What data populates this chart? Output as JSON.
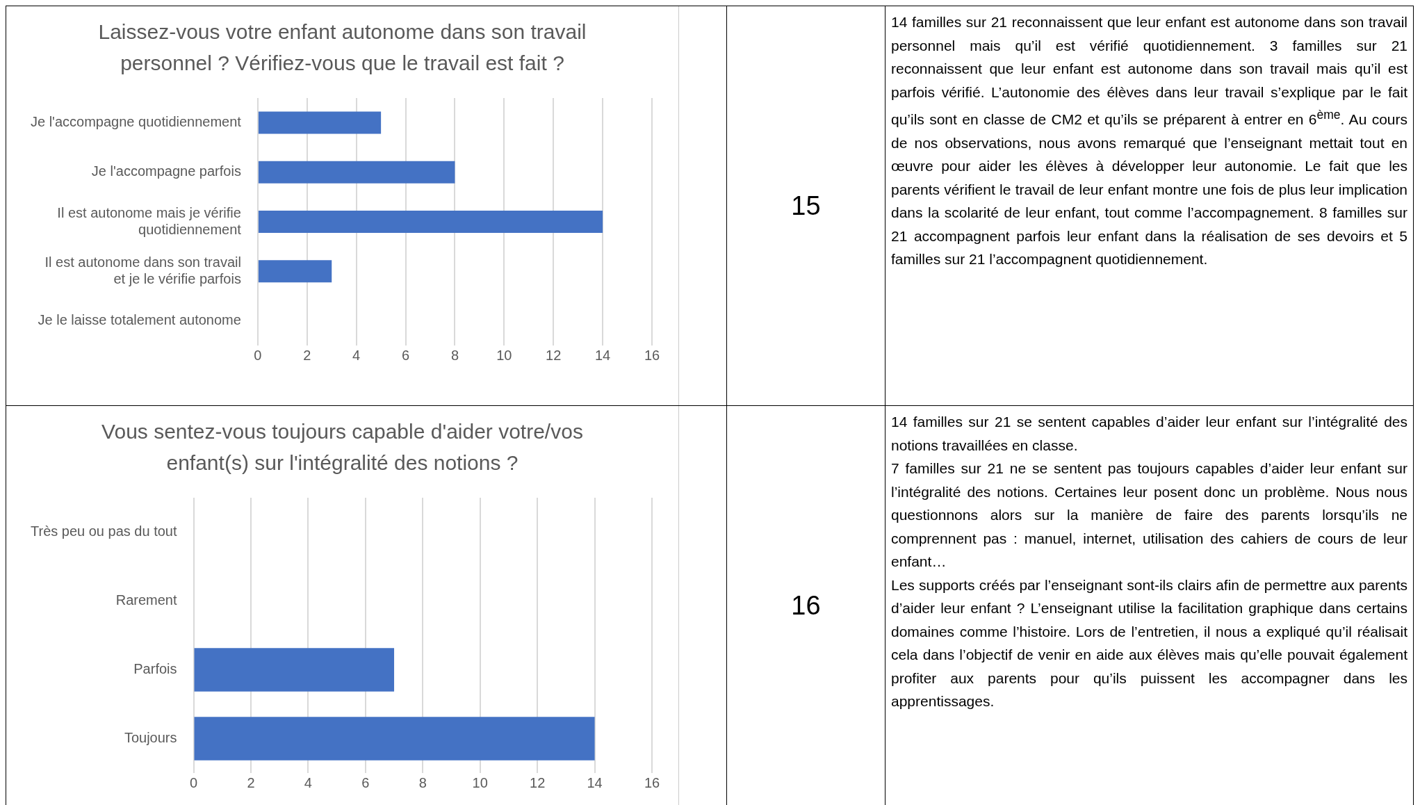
{
  "chart_data": [
    {
      "type": "bar",
      "orientation": "horizontal",
      "title": "Laissez-vous votre enfant autonome dans son travail personnel ? Vérifiez-vous que le travail est fait ?",
      "categories": [
        "Je l'accompagne quotidiennement",
        "Je l'accompagne parfois",
        "Il est autonome mais je vérifie quotidiennement",
        "Il est autonome dans son travail et je le vérifie parfois",
        "Je le laisse totalement autonome"
      ],
      "values": [
        5,
        8,
        14,
        3,
        0
      ],
      "color": "#4472c4",
      "xlim": [
        0,
        16
      ],
      "xticks": [
        0,
        2,
        4,
        6,
        8,
        10,
        12,
        14,
        16
      ],
      "grid": "x"
    },
    {
      "type": "bar",
      "orientation": "horizontal",
      "title": "Vous sentez-vous toujours capable d'aider votre/vos enfant(s) sur l'intégralité des notions ?",
      "categories": [
        "Très peu ou pas du tout",
        "Rarement",
        "Parfois",
        "Toujours"
      ],
      "values": [
        0,
        0,
        7,
        14
      ],
      "color": "#4472c4",
      "xlim": [
        0,
        16
      ],
      "xticks": [
        0,
        2,
        4,
        6,
        8,
        10,
        12,
        14,
        16
      ],
      "grid": "x"
    },
    {
      "type": "other",
      "annotations": [
        "15",
        "14 familles sur 21 reconnaissent que leur enfant est autonome dans son travail personnel mais qu’il est vérifié quotidiennement. 3 familles sur 21 reconnaissent que leur enfant est autonome dans son travail mais qu’il est parfois vérifié. L’autonomie des élèves dans leur travail s’explique par le fait qu’ils sont en classe de CM2 et qu’ils se préparent à entrer en 6$^{ème}$. Au cours de nos observations, nous avons remarqué que l’enseignant mettait tout en œuvre pour aider les élèves à développer leur autonomie. Le fait que les parents vérifient le travail de leur enfant montre une fois de plus leur implication dans la scolarité de leur enfant, tout comme l’accompagnement. 8 familles sur 21 accompagnent parfois leur enfant dans la réalisation de ses devoirs et 5 familles sur 21 l’accompagnent quotidiennement."
      ]
    },
    {
      "type": "other",
      "annotations": [
        "16",
        "14 familles sur 21 se sentent capables d’aider leur enfant sur l’intégralité des notions travaillées en classe.",
        "7 familles sur 21 ne se sentent pas toujours capables d’aider leur enfant sur l’intégralité des notions. Certaines leur posent donc un problème. Nous nous questionnons alors sur la manière de faire des parents lorsqu’ils ne comprennent pas : manuel, internet, utilisation des cahiers de cours de leur enfant…",
        "Les supports créés par l’enseignant sont-ils clairs afin de permettre aux parents d’aider leur enfant ? L’enseignant utilise la facilitation graphique dans certains domaines comme l’histoire. Lors de l’entretien, il nous a expliqué qu’il réalisait cela dans l’objectif de venir en aide aux élèves mais qu’elle pouvait également profiter aux parents pour qu’ils puissent les accompagner dans les apprentissages."
      ]
    }
  ]
}
